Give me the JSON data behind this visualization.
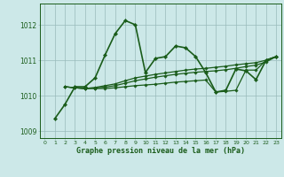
{
  "background_color": "#cce8e8",
  "grid_color": "#99bbbb",
  "line_color": "#1a5c1a",
  "title": "Graphe pression niveau de la mer (hPa)",
  "ylim": [
    1008.8,
    1012.6
  ],
  "yticks": [
    1009,
    1010,
    1011,
    1012
  ],
  "series_main": [
    null,
    1009.35,
    1009.75,
    1010.25,
    1010.25,
    1010.5,
    1011.15,
    1011.75,
    1012.12,
    1012.0,
    1010.65,
    1011.05,
    1011.1,
    1011.4,
    1011.35,
    1011.1,
    1010.65,
    1010.1,
    1010.15,
    1010.75,
    1010.7,
    1010.45,
    1011.0,
    1011.1
  ],
  "series_flat1": [
    null,
    null,
    1010.25,
    1010.22,
    1010.2,
    1010.2,
    1010.2,
    1010.22,
    1010.25,
    1010.28,
    1010.3,
    1010.32,
    1010.35,
    1010.38,
    1010.4,
    1010.42,
    1010.44,
    1010.1,
    1010.12,
    1010.15,
    1010.72,
    1010.72,
    1011.0,
    1011.1
  ],
  "series_flat2": [
    null,
    null,
    1010.25,
    1010.22,
    1010.2,
    1010.23,
    1010.28,
    1010.33,
    1010.42,
    1010.5,
    1010.55,
    1010.6,
    1010.64,
    1010.68,
    1010.72,
    1010.75,
    1010.77,
    1010.8,
    1010.83,
    1010.87,
    1010.9,
    1010.93,
    1011.0,
    1011.1
  ],
  "series_flat3": [
    null,
    null,
    1010.25,
    1010.22,
    1010.2,
    1010.21,
    1010.24,
    1010.28,
    1010.35,
    1010.42,
    1010.47,
    1010.52,
    1010.56,
    1010.6,
    1010.63,
    1010.66,
    1010.68,
    1010.7,
    1010.73,
    1010.77,
    1010.82,
    1010.86,
    1010.95,
    1011.1
  ]
}
